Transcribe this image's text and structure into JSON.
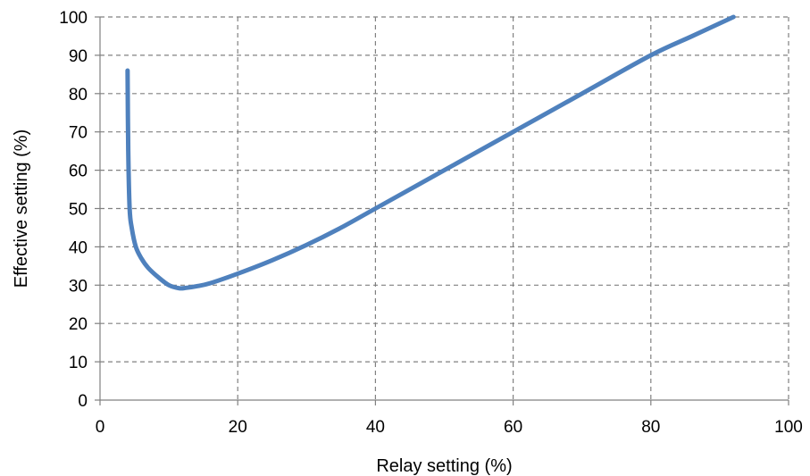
{
  "chart_data": {
    "type": "line",
    "title": "",
    "xlabel": "Relay setting (%)",
    "ylabel": "Effective setting (%)",
    "xlim": [
      0,
      100
    ],
    "ylim": [
      0,
      100
    ],
    "xticks": [
      0,
      20,
      40,
      60,
      80,
      100
    ],
    "yticks": [
      0,
      10,
      20,
      30,
      40,
      50,
      60,
      70,
      80,
      90,
      100
    ],
    "xtick_labels": [
      "0",
      "20",
      "40",
      "60",
      "80",
      "100"
    ],
    "ytick_labels": [
      "0",
      "10",
      "20",
      "30",
      "40",
      "50",
      "60",
      "70",
      "80",
      "90",
      "100"
    ],
    "grid": true,
    "legend": false,
    "series": [
      {
        "color": "#4f81bd",
        "x": [
          4.0,
          4.1,
          4.3,
          4.6,
          5.2,
          6.0,
          7.0,
          8.5,
          10.0,
          11.5,
          12.5,
          14.0,
          16.0,
          20.0,
          25.0,
          30.0,
          35.0,
          40.0,
          50.0,
          60.0,
          70.0,
          80.0,
          86.0,
          92.0
        ],
        "y": [
          86.0,
          65.0,
          50.0,
          45.0,
          40.0,
          37.0,
          34.5,
          32.0,
          30.0,
          29.2,
          29.3,
          29.7,
          30.5,
          33.0,
          36.5,
          40.5,
          45.0,
          50.0,
          60.0,
          70.0,
          80.0,
          90.0,
          95.0,
          100.0
        ]
      }
    ]
  }
}
